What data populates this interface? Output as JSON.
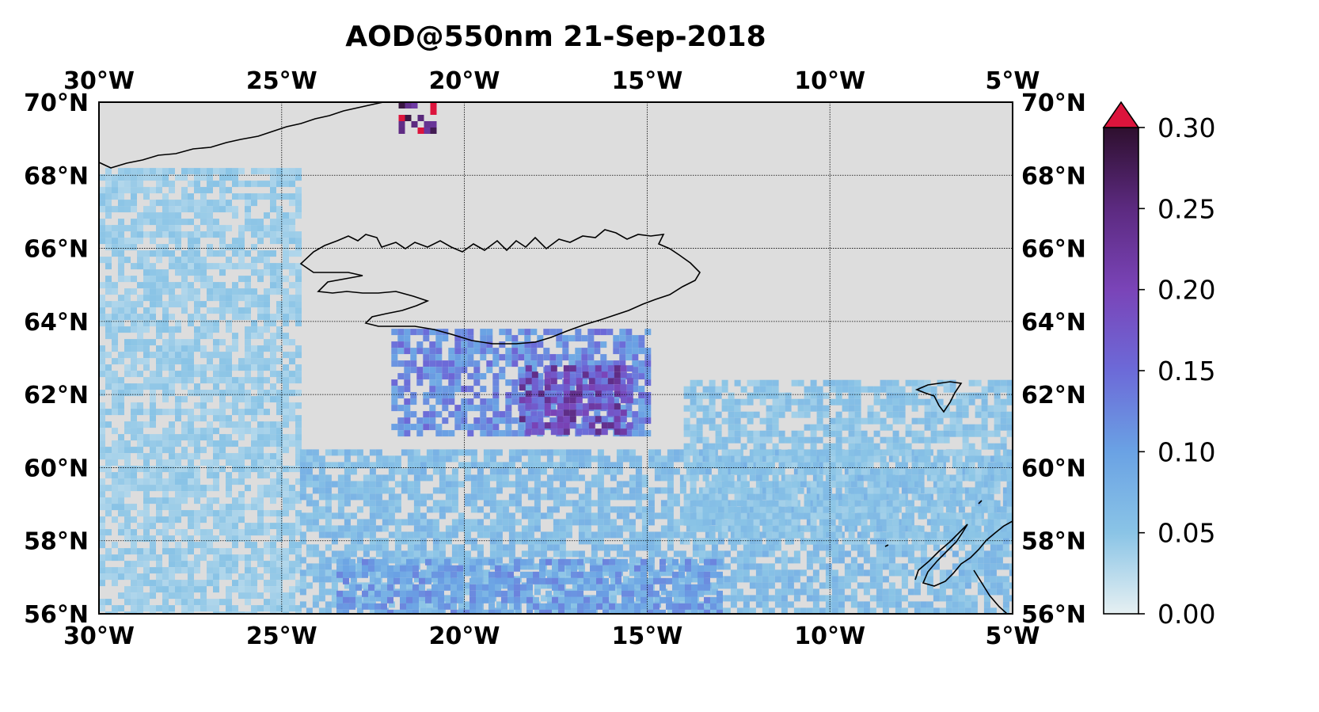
{
  "title": "AOD@550nm   21-Sep-2018",
  "map": {
    "lon_range": [
      -30,
      -5
    ],
    "lat_range": [
      56,
      70
    ],
    "ocean_color": "#dddddd",
    "grid": true,
    "coastline_color": "#000000",
    "lon_ticks": [
      {
        "value": -30,
        "label": "30°W"
      },
      {
        "value": -25,
        "label": "25°W"
      },
      {
        "value": -20,
        "label": "20°W"
      },
      {
        "value": -15,
        "label": "15°W"
      },
      {
        "value": -10,
        "label": "10°W"
      },
      {
        "value": -5,
        "label": "5°W"
      }
    ],
    "lat_ticks": [
      {
        "value": 70,
        "label": "70°N"
      },
      {
        "value": 68,
        "label": "68°N"
      },
      {
        "value": 66,
        "label": "66°N"
      },
      {
        "value": 64,
        "label": "64°N"
      },
      {
        "value": 62,
        "label": "62°N"
      },
      {
        "value": 60,
        "label": "60°N"
      },
      {
        "value": 58,
        "label": "58°N"
      },
      {
        "value": 56,
        "label": "56°N"
      }
    ]
  },
  "colorbar": {
    "range": [
      0,
      0.3
    ],
    "extend": "max",
    "over_color": "#dc143c",
    "stops": [
      "#e6f0f2",
      "#8ac4e6",
      "#6aa2e4",
      "#6c6ad8",
      "#7a44b8",
      "#5c2a80",
      "#2e0f2e"
    ],
    "ticks": [
      {
        "value": 0.3,
        "label": "0.30"
      },
      {
        "value": 0.25,
        "label": "0.25"
      },
      {
        "value": 0.2,
        "label": "0.20"
      },
      {
        "value": 0.15,
        "label": "0.15"
      },
      {
        "value": 0.1,
        "label": "0.10"
      },
      {
        "value": 0.05,
        "label": "0.05"
      },
      {
        "value": 0,
        "label": "0.00"
      }
    ]
  },
  "chart_data": {
    "type": "heatmap",
    "variable": "AOD@550nm",
    "date": "21-Sep-2018",
    "ylim": [
      0,
      0.3
    ],
    "regions": [
      {
        "lon": [
          -30,
          -24.5
        ],
        "lat": [
          56,
          68.2
        ],
        "aod": 0.04
      },
      {
        "lon": [
          -24.5,
          -5
        ],
        "lat": [
          56,
          60.5
        ],
        "aod": 0.06
      },
      {
        "lon": [
          -23.5,
          -13
        ],
        "lat": [
          56,
          57.5
        ],
        "aod": 0.1
      },
      {
        "lon": [
          -14,
          -5
        ],
        "lat": [
          58,
          62.4
        ],
        "aod": 0.05
      },
      {
        "lon": [
          -22,
          -15
        ],
        "lat": [
          61,
          63.8
        ],
        "aod": 0.12
      },
      {
        "lon": [
          -18.5,
          -15.5
        ],
        "lat": [
          61,
          62.8
        ],
        "aod": 0.19
      },
      {
        "lon": [
          -21.8,
          -20.8
        ],
        "lat": [
          69.3,
          70
        ],
        "aod": 0.3
      }
    ]
  }
}
